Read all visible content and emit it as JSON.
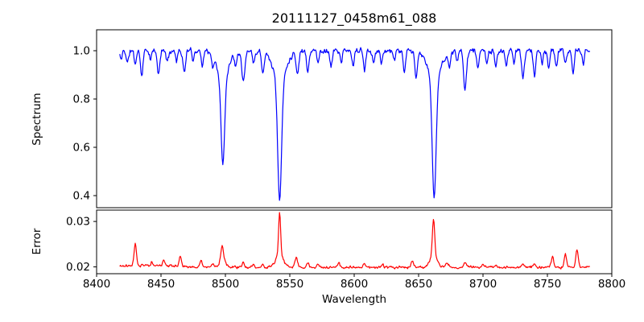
{
  "figure": {
    "background": "#ffffff",
    "text_color": "#000000"
  },
  "chart_data": {
    "type": "line",
    "title": "20111127_0458m61_088",
    "xlabel": "Wavelength",
    "xlim": [
      8400,
      8800
    ],
    "x_ticks": [
      8400,
      8450,
      8500,
      8550,
      8600,
      8650,
      8700,
      8750,
      8800
    ],
    "x_tick_labels": [
      "8400",
      "8450",
      "8500",
      "8550",
      "8600",
      "8650",
      "8700",
      "8750",
      "8800"
    ],
    "data_x_range": [
      8418,
      8783
    ],
    "sample_step": 0.5,
    "noise_seed": 11,
    "grid": false,
    "legend": "none",
    "subplots": [
      {
        "ylabel": "Spectrum",
        "ylim": [
          0.35,
          1.0867
        ],
        "y_ticks": [
          0.4,
          0.6,
          0.8,
          1.0
        ],
        "y_tick_labels": [
          "0.4",
          "0.6",
          "0.8",
          "1.0"
        ],
        "line_color": "#0000ff",
        "series": {
          "name": "spectrum",
          "baseline": 1.0,
          "feature_sign": -1,
          "noise_amp": 0.02,
          "noise_scales_with_value": true,
          "features_format": [
            "center_wavelength",
            "depth",
            "sigma"
          ],
          "features": [
            [
              8419,
              0.04,
              0.7
            ],
            [
              8424,
              0.05,
              0.9
            ],
            [
              8430,
              0.055,
              0.8
            ],
            [
              8435,
              0.105,
              0.9
            ],
            [
              8442,
              0.04,
              0.7
            ],
            [
              8448,
              0.095,
              1.0
            ],
            [
              8455,
              0.05,
              0.8
            ],
            [
              8462,
              0.04,
              0.7
            ],
            [
              8468,
              0.09,
              1.0
            ],
            [
              8475,
              0.04,
              0.7
            ],
            [
              8482,
              0.06,
              0.8
            ],
            [
              8490,
              0.05,
              0.8
            ],
            [
              8498.0,
              0.36,
              1.4
            ],
            [
              8498.0,
              0.11,
              4.5
            ],
            [
              8508,
              0.05,
              0.8
            ],
            [
              8514,
              0.125,
              1.2
            ],
            [
              8522,
              0.055,
              0.8
            ],
            [
              8529,
              0.085,
              0.9
            ],
            [
              8542.1,
              0.5,
              1.5
            ],
            [
              8542.1,
              0.12,
              5.0
            ],
            [
              8556,
              0.095,
              1.0
            ],
            [
              8564,
              0.085,
              0.9
            ],
            [
              8572,
              0.05,
              0.8
            ],
            [
              8582,
              0.065,
              0.9
            ],
            [
              8590,
              0.05,
              0.8
            ],
            [
              8599,
              0.06,
              0.9
            ],
            [
              8608,
              0.08,
              0.9
            ],
            [
              8615,
              0.045,
              0.8
            ],
            [
              8621,
              0.055,
              0.8
            ],
            [
              8631,
              0.045,
              0.8
            ],
            [
              8639,
              0.095,
              0.9
            ],
            [
              8648,
              0.115,
              1.0
            ],
            [
              8662.1,
              0.495,
              1.5
            ],
            [
              8662.1,
              0.115,
              5.0
            ],
            [
              8674,
              0.065,
              0.9
            ],
            [
              8680,
              0.05,
              0.8
            ],
            [
              8686,
              0.16,
              1.1
            ],
            [
              8696,
              0.065,
              0.9
            ],
            [
              8703,
              0.05,
              0.8
            ],
            [
              8710,
              0.075,
              0.9
            ],
            [
              8718,
              0.065,
              0.8
            ],
            [
              8724,
              0.05,
              0.8
            ],
            [
              8731,
              0.11,
              1.0
            ],
            [
              8740,
              0.105,
              0.9
            ],
            [
              8746,
              0.05,
              0.8
            ],
            [
              8751,
              0.075,
              0.8
            ],
            [
              8757,
              0.065,
              0.8
            ],
            [
              8764,
              0.055,
              0.8
            ],
            [
              8770,
              0.095,
              0.9
            ],
            [
              8778,
              0.055,
              0.8
            ]
          ]
        }
      },
      {
        "ylabel": "Error",
        "ylim": [
          0.0185,
          0.0325
        ],
        "y_ticks": [
          0.02,
          0.03
        ],
        "y_tick_labels": [
          "0.02",
          "0.03"
        ],
        "line_color": "#ff0000",
        "series": {
          "name": "error",
          "baseline": 0.0199,
          "feature_sign": 1,
          "noise_amp": 0.0005,
          "noise_scales_with_value": false,
          "features_format": [
            "center_wavelength",
            "height",
            "sigma"
          ],
          "features": [
            [
              8430,
              0.005,
              0.9
            ],
            [
              8440,
              0.0004,
              25
            ],
            [
              8443,
              0.0008,
              0.8
            ],
            [
              8452,
              0.0013,
              0.8
            ],
            [
              8465,
              0.0021,
              0.9
            ],
            [
              8481,
              0.0015,
              0.8
            ],
            [
              8490,
              0.0009,
              0.8
            ],
            [
              8497.5,
              0.0033,
              1.0
            ],
            [
              8498,
              0.0014,
              2.5
            ],
            [
              8514,
              0.0011,
              1.0
            ],
            [
              8522,
              0.0007,
              0.8
            ],
            [
              8529,
              0.0008,
              0.8
            ],
            [
              8542.1,
              0.0092,
              0.8
            ],
            [
              8542.1,
              0.0028,
              2.8
            ],
            [
              8555,
              0.0021,
              1.0
            ],
            [
              8564,
              0.0009,
              0.9
            ],
            [
              8572,
              0.0006,
              0.8
            ],
            [
              8588,
              0.0011,
              0.9
            ],
            [
              8608,
              0.0008,
              0.9
            ],
            [
              8622,
              0.0007,
              0.8
            ],
            [
              8645,
              0.0013,
              1.0
            ],
            [
              8661.6,
              0.0078,
              0.9
            ],
            [
              8661.6,
              0.0026,
              2.8
            ],
            [
              8672,
              0.0011,
              1.2
            ],
            [
              8686,
              0.0011,
              1.0
            ],
            [
              8700,
              0.0006,
              0.9
            ],
            [
              8710,
              0.0005,
              0.8
            ],
            [
              8731,
              0.0009,
              0.9
            ],
            [
              8740,
              0.0008,
              0.9
            ],
            [
              8754,
              0.0025,
              0.9
            ],
            [
              8764,
              0.003,
              0.9
            ],
            [
              8773,
              0.004,
              0.9
            ]
          ]
        }
      }
    ]
  }
}
